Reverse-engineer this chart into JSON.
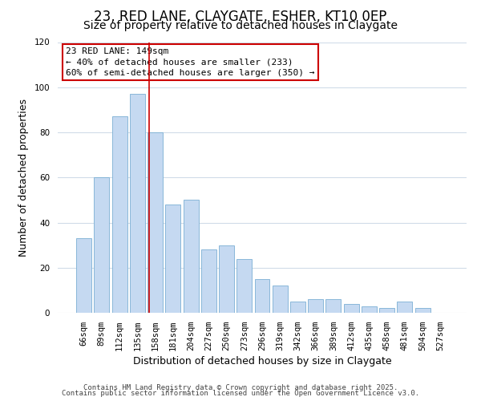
{
  "title": "23, RED LANE, CLAYGATE, ESHER, KT10 0EP",
  "subtitle": "Size of property relative to detached houses in Claygate",
  "xlabel": "Distribution of detached houses by size in Claygate",
  "ylabel": "Number of detached properties",
  "bar_labels": [
    "66sqm",
    "89sqm",
    "112sqm",
    "135sqm",
    "158sqm",
    "181sqm",
    "204sqm",
    "227sqm",
    "250sqm",
    "273sqm",
    "296sqm",
    "319sqm",
    "342sqm",
    "366sqm",
    "389sqm",
    "412sqm",
    "435sqm",
    "458sqm",
    "481sqm",
    "504sqm",
    "527sqm"
  ],
  "bar_values": [
    33,
    60,
    87,
    97,
    80,
    48,
    50,
    28,
    30,
    24,
    15,
    12,
    5,
    6,
    6,
    4,
    3,
    2,
    5,
    2,
    0
  ],
  "bar_color": "#c5d9f1",
  "bar_edgecolor": "#7bafd4",
  "vline_x_index": 4,
  "vline_color": "#cc0000",
  "annotation_line1": "23 RED LANE: 149sqm",
  "annotation_line2": "← 40% of detached houses are smaller (233)",
  "annotation_line3": "60% of semi-detached houses are larger (350) →",
  "annotation_box_edgecolor": "#cc0000",
  "ylim": [
    0,
    120
  ],
  "yticks": [
    0,
    20,
    40,
    60,
    80,
    100,
    120
  ],
  "footer_line1": "Contains HM Land Registry data © Crown copyright and database right 2025.",
  "footer_line2": "Contains public sector information licensed under the Open Government Licence v3.0.",
  "background_color": "#ffffff",
  "grid_color": "#d0dce8",
  "title_fontsize": 12,
  "subtitle_fontsize": 10,
  "axis_label_fontsize": 9,
  "tick_fontsize": 7.5,
  "annotation_fontsize": 8,
  "footer_fontsize": 6.5
}
